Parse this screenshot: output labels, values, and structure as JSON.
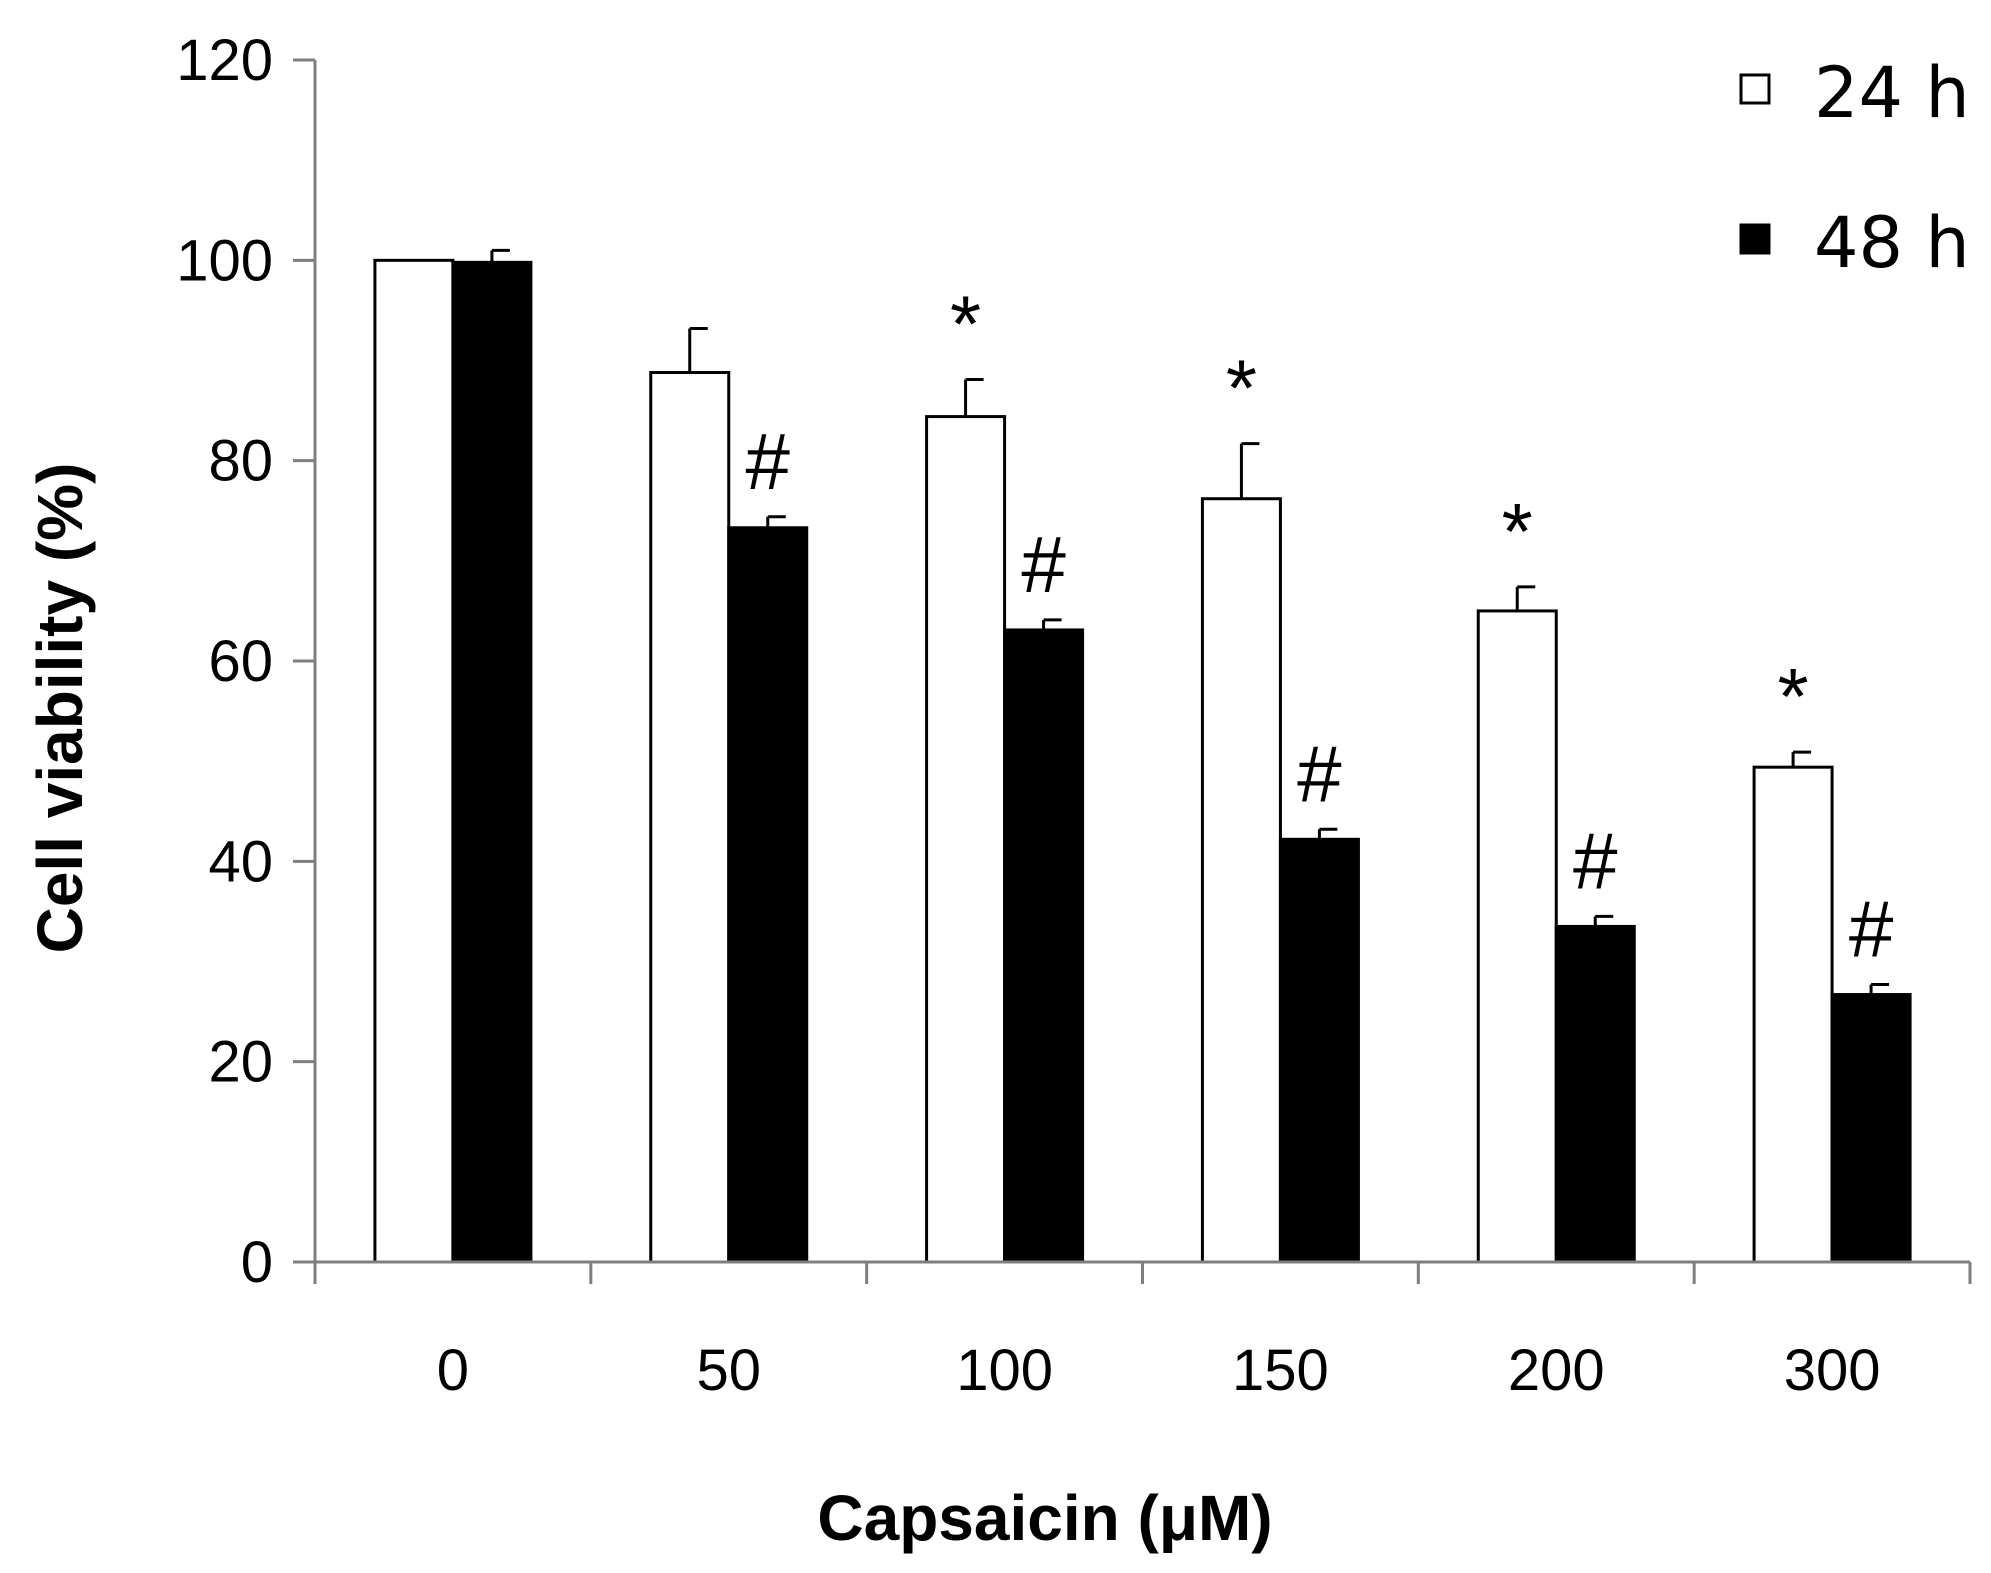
{
  "chart_data": {
    "type": "bar",
    "title": "",
    "xlabel": "Capsaicin (μM)",
    "ylabel": "Cell viability (%)",
    "ylim": [
      0,
      120
    ],
    "yticks": [
      0,
      20,
      40,
      60,
      80,
      100,
      120
    ],
    "grid": false,
    "legend_position": "top-right",
    "categories": [
      "0",
      "50",
      "100",
      "150",
      "200",
      "300"
    ],
    "series": [
      {
        "name": "24 h",
        "fill": "#ffffff",
        "values": [
          100,
          88.8,
          84.4,
          76.2,
          65.0,
          49.4
        ],
        "errors": [
          0,
          4.4,
          3.7,
          5.5,
          2.4,
          1.5
        ],
        "annotations": [
          "",
          "",
          "*",
          "*",
          "*",
          "*"
        ]
      },
      {
        "name": "48 h",
        "fill": "#000000",
        "values": [
          99.8,
          73.3,
          63.1,
          42.2,
          33.5,
          26.7
        ],
        "errors": [
          1.2,
          1.1,
          1.0,
          1.0,
          1.0,
          1.0
        ],
        "annotations": [
          "",
          "#",
          "#",
          "#",
          "#",
          "#"
        ]
      }
    ]
  },
  "colors": {
    "axis": "#7f7f7f",
    "bar_outline": "#000000",
    "text": "#000000"
  }
}
